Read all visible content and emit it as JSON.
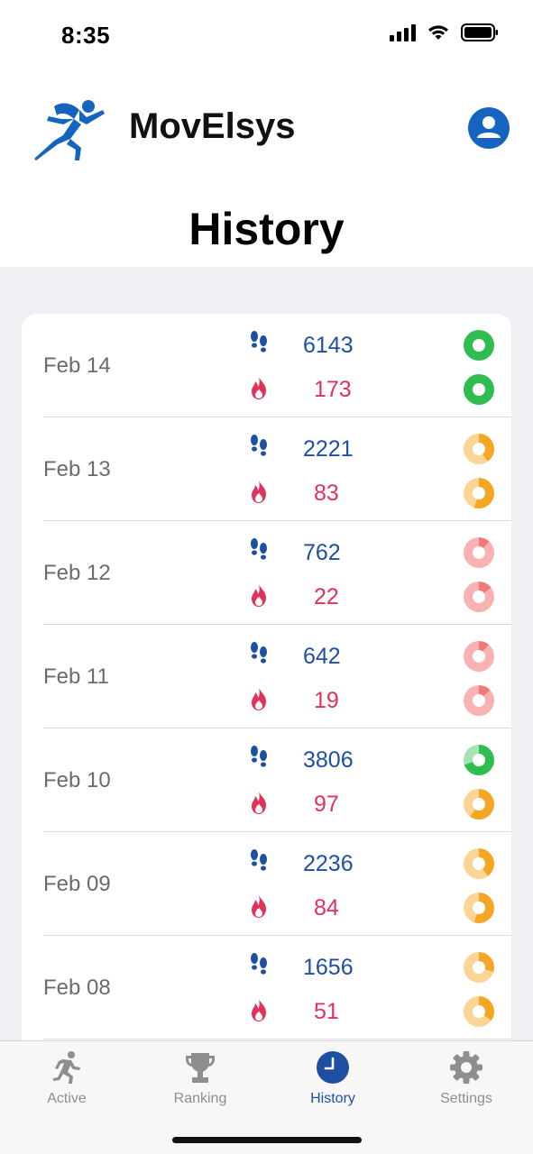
{
  "status": {
    "time": "8:35"
  },
  "app": {
    "name": "MovElsys",
    "logo_icon": "runner-logo-icon",
    "profile_icon": "person-icon"
  },
  "page": {
    "title": "History"
  },
  "colors": {
    "brand": "#1565c0",
    "steps": "#1f4fa3",
    "calories": "#e0325a",
    "good": "#2ebd4e",
    "medium": "#f5a623",
    "low": "#f07a7a"
  },
  "history": [
    {
      "date": "Feb 14",
      "steps": "6143",
      "calories": "173",
      "steps_status": "good",
      "steps_progress": 1.0,
      "cal_status": "good",
      "cal_progress": 1.0
    },
    {
      "date": "Feb 13",
      "steps": "2221",
      "calories": "83",
      "steps_status": "medium",
      "steps_progress": 0.4,
      "cal_status": "medium",
      "cal_progress": 0.55
    },
    {
      "date": "Feb 12",
      "steps": "762",
      "calories": "22",
      "steps_status": "low",
      "steps_progress": 0.12,
      "cal_status": "low",
      "cal_progress": 0.15
    },
    {
      "date": "Feb 11",
      "steps": "642",
      "calories": "19",
      "steps_status": "low",
      "steps_progress": 0.11,
      "cal_status": "low",
      "cal_progress": 0.13
    },
    {
      "date": "Feb 10",
      "steps": "3806",
      "calories": "97",
      "steps_status": "good",
      "steps_progress": 0.7,
      "cal_status": "medium",
      "cal_progress": 0.6
    },
    {
      "date": "Feb 09",
      "steps": "2236",
      "calories": "84",
      "steps_status": "medium",
      "steps_progress": 0.4,
      "cal_status": "medium",
      "cal_progress": 0.55
    },
    {
      "date": "Feb 08",
      "steps": "1656",
      "calories": "51",
      "steps_status": "medium",
      "steps_progress": 0.3,
      "cal_status": "medium",
      "cal_progress": 0.35
    }
  ],
  "tabs": [
    {
      "label": "Active",
      "icon": "runner-icon",
      "active": false
    },
    {
      "label": "Ranking",
      "icon": "trophy-icon",
      "active": false
    },
    {
      "label": "History",
      "icon": "clock-icon",
      "active": true
    },
    {
      "label": "Settings",
      "icon": "gear-icon",
      "active": false
    }
  ]
}
